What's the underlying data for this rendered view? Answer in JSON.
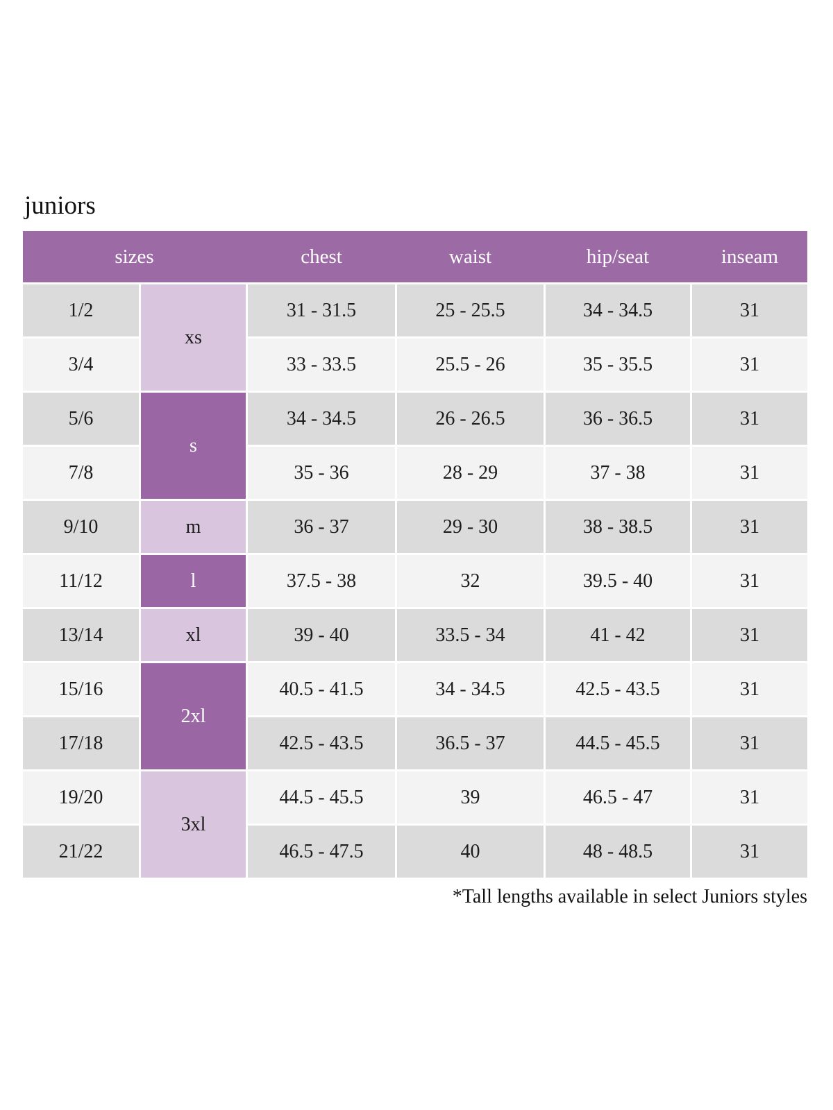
{
  "page": {
    "title": "juniors",
    "footnote": "*Tall lengths available in select Juniors styles"
  },
  "colors": {
    "header_bg": "#9c6aa5",
    "header_text": "#ffffff",
    "group_dark_bg": "#9a67a4",
    "group_light_bg": "#d9c6de",
    "row_dark_bg": "#dcdbdc",
    "row_light_bg": "#f4f3f4",
    "body_text": "#1c1c1c"
  },
  "table": {
    "headers": {
      "sizes": "sizes",
      "chest": "chest",
      "waist": "waist",
      "hip_seat": "hip/seat",
      "inseam": "inseam"
    },
    "size_groups": [
      {
        "label": "xs",
        "spans_rows": "1-2",
        "shade": "light"
      },
      {
        "label": "s",
        "spans_rows": "3-4",
        "shade": "dark"
      },
      {
        "label": "m",
        "spans_rows": "5",
        "shade": "light"
      },
      {
        "label": "l",
        "spans_rows": "6",
        "shade": "dark"
      },
      {
        "label": "xl",
        "spans_rows": "7",
        "shade": "light"
      },
      {
        "label": "2xl",
        "spans_rows": "8-9",
        "shade": "dark"
      },
      {
        "label": "3xl",
        "spans_rows": "10-11",
        "shade": "light"
      }
    ],
    "rows": [
      {
        "size": "1/2",
        "chest": "31 - 31.5",
        "waist": "25 - 25.5",
        "hip_seat": "34 - 34.5",
        "inseam": "31"
      },
      {
        "size": "3/4",
        "chest": "33 - 33.5",
        "waist": "25.5 - 26",
        "hip_seat": "35 - 35.5",
        "inseam": "31"
      },
      {
        "size": "5/6",
        "chest": "34 - 34.5",
        "waist": "26 - 26.5",
        "hip_seat": "36 - 36.5",
        "inseam": "31"
      },
      {
        "size": "7/8",
        "chest": "35 - 36",
        "waist": "28 - 29",
        "hip_seat": "37 - 38",
        "inseam": "31"
      },
      {
        "size": "9/10",
        "chest": "36 - 37",
        "waist": "29 - 30",
        "hip_seat": "38 - 38.5",
        "inseam": "31"
      },
      {
        "size": "11/12",
        "chest": "37.5 - 38",
        "waist": "32",
        "hip_seat": "39.5 - 40",
        "inseam": "31"
      },
      {
        "size": "13/14",
        "chest": "39 - 40",
        "waist": "33.5 - 34",
        "hip_seat": "41 - 42",
        "inseam": "31"
      },
      {
        "size": "15/16",
        "chest": "40.5 - 41.5",
        "waist": "34 - 34.5",
        "hip_seat": "42.5 - 43.5",
        "inseam": "31"
      },
      {
        "size": "17/18",
        "chest": "42.5 - 43.5",
        "waist": "36.5 - 37",
        "hip_seat": "44.5 - 45.5",
        "inseam": "31"
      },
      {
        "size": "19/20",
        "chest": "44.5 - 45.5",
        "waist": "39",
        "hip_seat": "46.5 - 47",
        "inseam": "31"
      },
      {
        "size": "21/22",
        "chest": "46.5 - 47.5",
        "waist": "40",
        "hip_seat": "48 - 48.5",
        "inseam": "31"
      }
    ]
  }
}
